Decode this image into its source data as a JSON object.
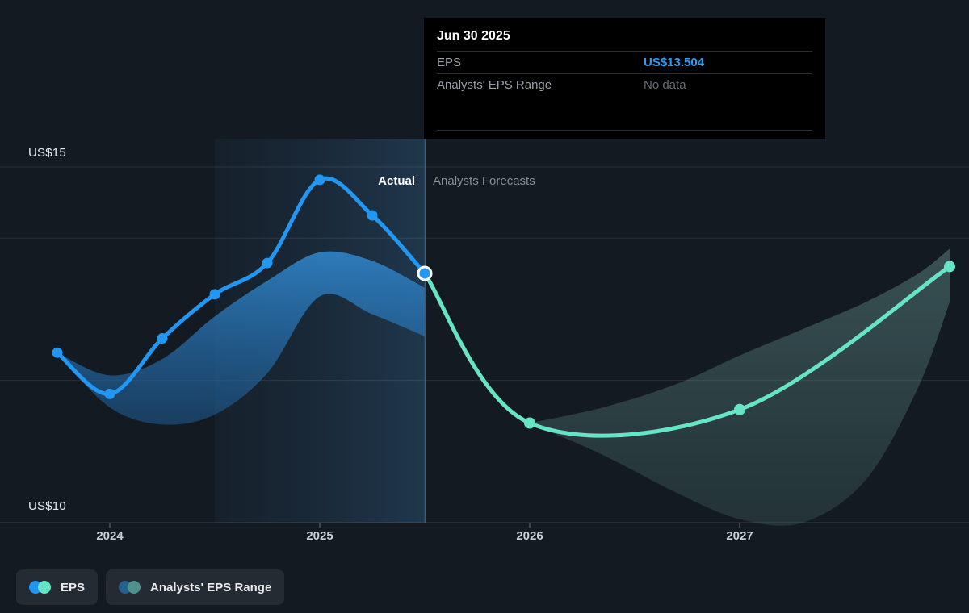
{
  "labels": {
    "actual_phase": "Actual",
    "forecast_phase": "Analysts Forecasts"
  },
  "tooltip": {
    "title": "Jun 30 2025",
    "rows": [
      {
        "label": "EPS",
        "value": "US$13.504"
      },
      {
        "label": "Analysts' EPS Range",
        "value": "No data"
      }
    ]
  },
  "legend": {
    "items": [
      {
        "label": "EPS",
        "swatch": [
          "#2196f3",
          "#67e4c6"
        ]
      },
      {
        "label": "Analysts' EPS Range",
        "swatch": [
          "#23618e",
          "#4f918c"
        ]
      }
    ]
  },
  "colors": {
    "background": "#141a21",
    "accent_blue": "#2196f3",
    "accent_teal": "#67e4c6",
    "tooltip_bg": "#000000",
    "eps_value_text": "#2b9df4",
    "muted_text": "#9aa1a8",
    "gridline": "rgba(255,255,255,0.09)",
    "axis_line": "rgba(255,255,255,0.16)",
    "divider_line": "#3f5b75"
  },
  "chart_data": {
    "type": "line",
    "title": "EPS actual vs analysts forecast",
    "unit_prefix": "US$",
    "x_axis": {
      "ticks": [
        2024,
        2025,
        2026,
        2027
      ],
      "tick_labels": [
        "2024",
        "2025",
        "2026",
        "2027"
      ]
    },
    "y_axis": {
      "min": 10,
      "max": 15,
      "top_label": "US$15",
      "bottom_label": "US$10",
      "gridline_values": [
        15,
        14,
        12,
        10
      ]
    },
    "divider_x": 2025.5,
    "highlight_region": [
      2024.5,
      2025.5
    ],
    "selected_point": {
      "date": "Jun 30 2025",
      "x": 2025.5,
      "eps": 13.504
    },
    "series": [
      {
        "name": "EPS",
        "role": "actual",
        "color": "#2196f3",
        "x": [
          2023.75,
          2024.0,
          2024.25,
          2024.5,
          2024.75,
          2025.0,
          2025.25,
          2025.5
        ],
        "y": [
          12.39,
          11.81,
          12.59,
          13.21,
          13.65,
          14.82,
          14.32,
          13.504
        ],
        "selected_index": 7
      },
      {
        "name": "EPS (Analysts Forecast)",
        "role": "forecast",
        "color": "#67e4c6",
        "x": [
          2025.5,
          2026.0,
          2027.0,
          2028.0
        ],
        "y": [
          13.504,
          11.4,
          11.59,
          13.6
        ]
      }
    ],
    "bands": [
      {
        "name": "Analysts' EPS Range (actual period)",
        "color_top": "rgba(47,127,192,0.95)",
        "color_bottom": "rgba(30,92,148,0.55)",
        "x": [
          2023.75,
          2024.0,
          2024.25,
          2024.5,
          2024.75,
          2025.0,
          2025.25,
          2025.5
        ],
        "high": [
          12.39,
          12.07,
          12.3,
          12.9,
          13.4,
          13.8,
          13.68,
          13.3
        ],
        "low": [
          12.39,
          11.62,
          11.38,
          11.52,
          12.1,
          13.18,
          12.93,
          12.62
        ]
      },
      {
        "name": "Analysts' EPS Range (forecast)",
        "color_top": "rgba(118,172,168,0.38)",
        "color_bottom": "rgba(88,138,136,0.22)",
        "x": [
          2026.0,
          2026.35,
          2026.7,
          2027.0,
          2027.3,
          2027.6,
          2027.85,
          2028.0
        ],
        "high": [
          11.4,
          11.62,
          11.95,
          12.35,
          12.72,
          13.1,
          13.5,
          13.85
        ],
        "low": [
          11.4,
          10.95,
          10.42,
          10.05,
          10.0,
          10.6,
          11.9,
          13.1
        ]
      }
    ]
  }
}
